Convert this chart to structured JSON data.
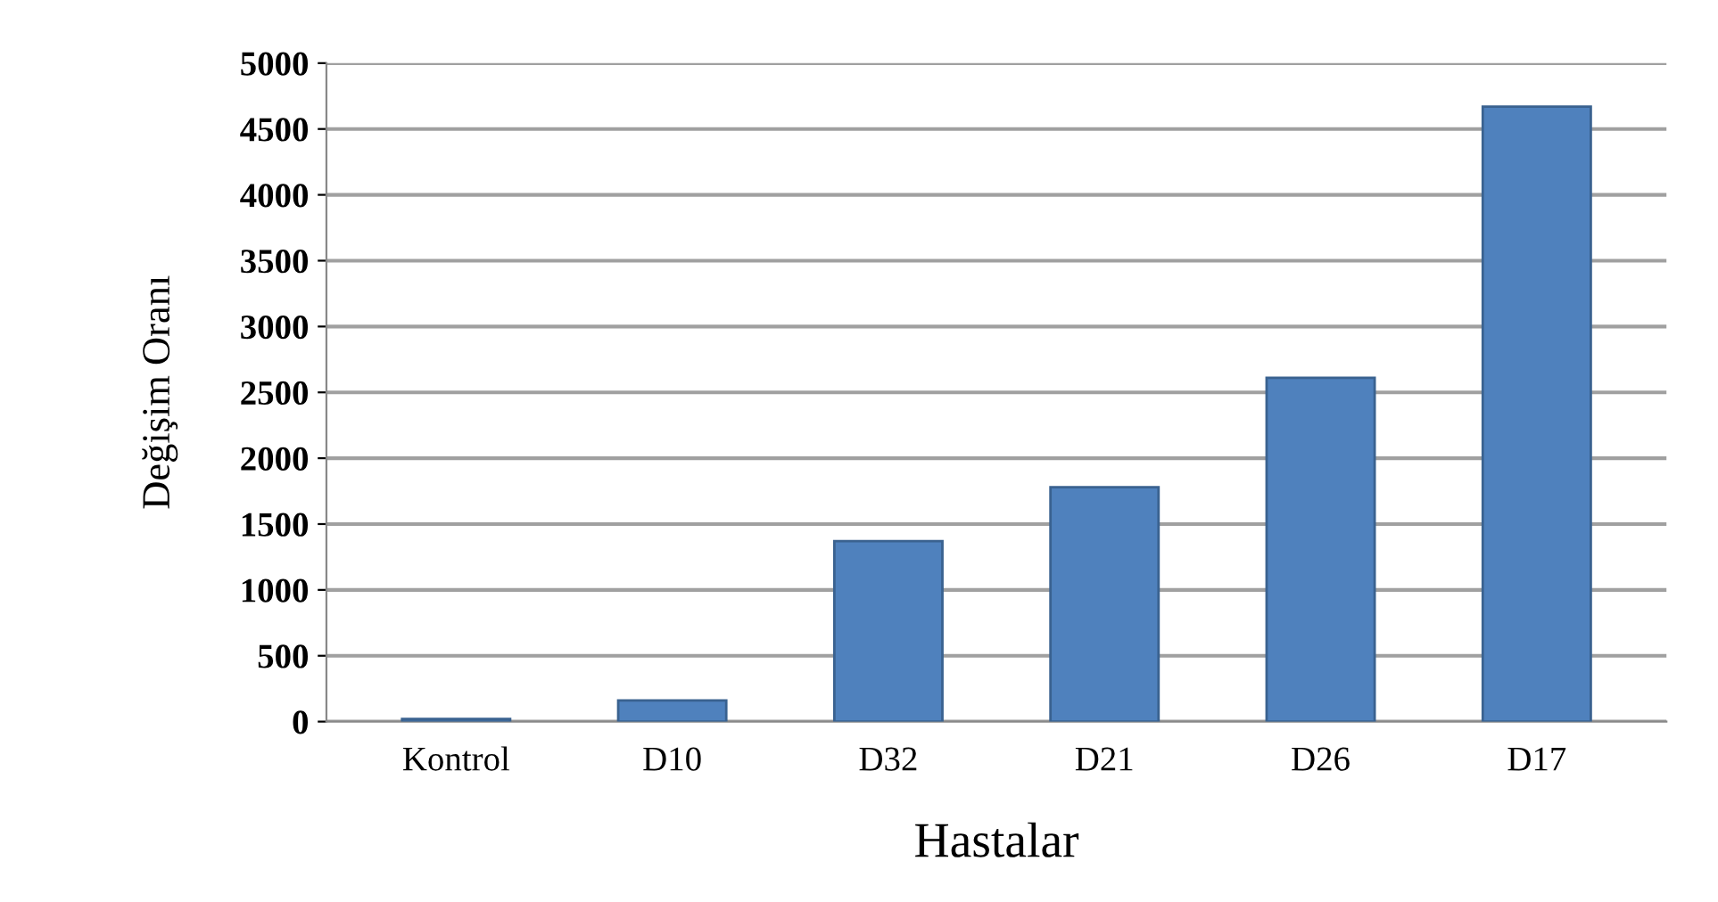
{
  "chart_data": {
    "type": "bar",
    "xlabel": "Hastalar",
    "ylabel": "Değişim Oranı",
    "categories": [
      "Kontrol",
      "D10",
      "D32",
      "D21",
      "D26",
      "D17"
    ],
    "values": [
      20,
      160,
      1370,
      1780,
      2610,
      4670
    ],
    "color": "#4f81bd",
    "ylim": [
      0,
      5000
    ],
    "yticks": [
      0,
      500,
      1000,
      1500,
      2000,
      2500,
      3000,
      3500,
      4000,
      4500,
      5000
    ],
    "grid": "y"
  }
}
